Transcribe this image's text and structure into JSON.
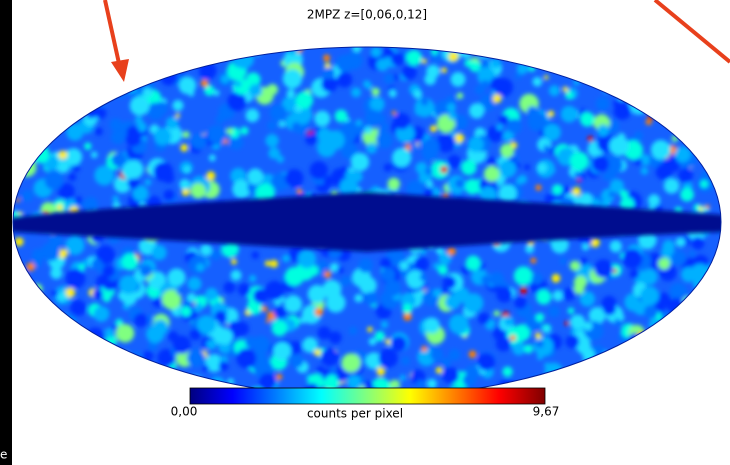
{
  "map": {
    "title": "2MPZ z=[0,06,0,12]",
    "colorbar": {
      "min_label": "0,00",
      "label": "counts per pixel",
      "max_label": "9,67"
    },
    "fragment": "e"
  }
}
